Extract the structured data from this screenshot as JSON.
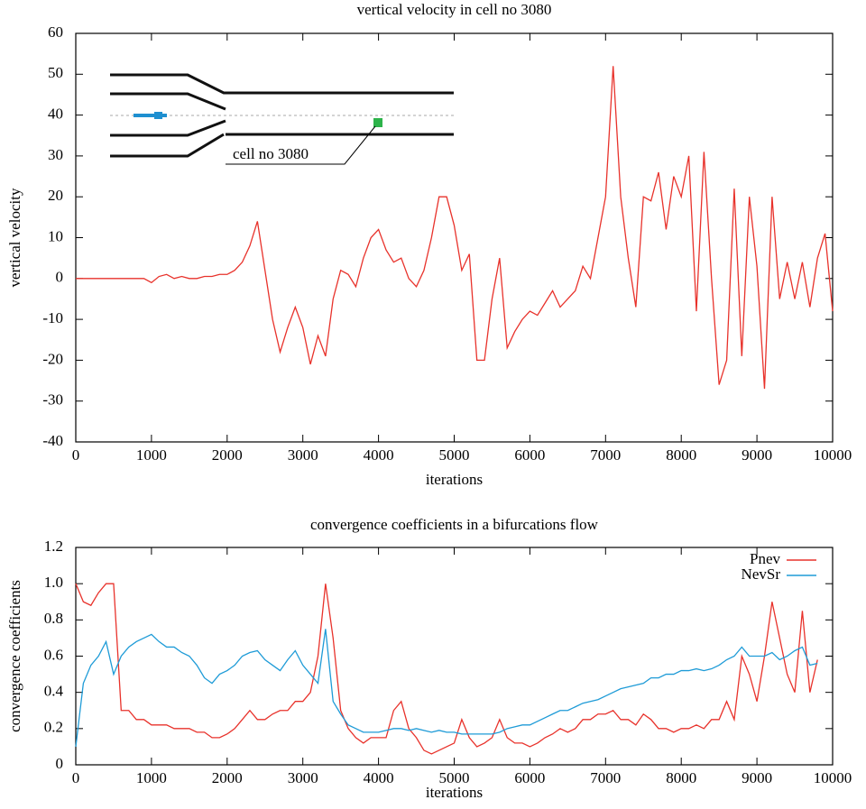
{
  "chart_data": [
    {
      "type": "line",
      "title": "vertical velocity in cell no 3080",
      "x_label": "iterations",
      "y_label": "vertical velocity",
      "annotation": "cell no 3080",
      "x": [
        0,
        100,
        200,
        300,
        400,
        500,
        600,
        700,
        800,
        900,
        1000,
        1100,
        1200,
        1300,
        1400,
        1500,
        1600,
        1700,
        1800,
        1900,
        2000,
        2100,
        2200,
        2300,
        2400,
        2500,
        2600,
        2700,
        2800,
        2900,
        3000,
        3100,
        3200,
        3300,
        3400,
        3500,
        3600,
        3700,
        3800,
        3900,
        4000,
        4100,
        4200,
        4300,
        4400,
        4500,
        4600,
        4700,
        4800,
        4900,
        5000,
        5100,
        5200,
        5300,
        5400,
        5500,
        5600,
        5700,
        5800,
        5900,
        6000,
        6100,
        6200,
        6300,
        6400,
        6500,
        6600,
        6700,
        6800,
        6900,
        7000,
        7100,
        7200,
        7300,
        7400,
        7500,
        7600,
        7700,
        7800,
        7900,
        8000,
        8100,
        8200,
        8300,
        8400,
        8500,
        8600,
        8700,
        8800,
        8900,
        9000,
        9100,
        9200,
        9300,
        9400,
        9500,
        9600,
        9700,
        9800,
        9900,
        10000
      ],
      "series": [
        {
          "name": "vertical velocity",
          "color": "#e8322b",
          "values": [
            0,
            0,
            0,
            0,
            0,
            0,
            0,
            0,
            0,
            0,
            -1,
            0.5,
            1,
            0,
            0.5,
            0,
            0,
            0.5,
            0.5,
            1,
            1,
            2,
            4,
            8,
            14,
            2,
            -10,
            -18,
            -12,
            -7,
            -12,
            -21,
            -14,
            -19,
            -5,
            2,
            1,
            -2,
            5,
            10,
            12,
            7,
            4,
            5,
            0,
            -2,
            2,
            10,
            20,
            20,
            13,
            2,
            6,
            -20,
            -20,
            -5,
            5,
            -17,
            -13,
            -10,
            -8,
            -9,
            -6,
            -3,
            -7,
            -5,
            -3,
            3,
            0,
            10,
            20,
            52,
            20,
            5,
            -7,
            20,
            19,
            26,
            12,
            25,
            20,
            30,
            -8,
            31,
            0,
            -26,
            -20,
            22,
            -19,
            20,
            3,
            -27,
            20,
            -5,
            4,
            -5,
            4,
            -7,
            5,
            11,
            -8
          ]
        }
      ],
      "xlim": [
        0,
        10000
      ],
      "xticks": [
        0,
        1000,
        2000,
        3000,
        4000,
        5000,
        6000,
        7000,
        8000,
        9000,
        10000
      ],
      "ylim": [
        -40,
        60
      ],
      "yticks": [
        -40,
        -30,
        -20,
        -10,
        0,
        10,
        20,
        30,
        40,
        50,
        60
      ],
      "grid": false
    },
    {
      "type": "line",
      "title": "convergence coefficients in a bifurcations flow",
      "x_label": "iterations",
      "y_label": "convergence coefficients",
      "legend": "upper right",
      "x": [
        0,
        100,
        200,
        300,
        400,
        500,
        600,
        700,
        800,
        900,
        1000,
        1100,
        1200,
        1300,
        1400,
        1500,
        1600,
        1700,
        1800,
        1900,
        2000,
        2100,
        2200,
        2300,
        2400,
        2500,
        2600,
        2700,
        2800,
        2900,
        3000,
        3100,
        3200,
        3300,
        3400,
        3500,
        3600,
        3700,
        3800,
        3900,
        4000,
        4100,
        4200,
        4300,
        4400,
        4500,
        4600,
        4700,
        4800,
        4900,
        5000,
        5100,
        5200,
        5300,
        5400,
        5500,
        5600,
        5700,
        5800,
        5900,
        6000,
        6100,
        6200,
        6300,
        6400,
        6500,
        6600,
        6700,
        6800,
        6900,
        7000,
        7100,
        7200,
        7300,
        7400,
        7500,
        7600,
        7700,
        7800,
        7900,
        8000,
        8100,
        8200,
        8300,
        8400,
        8500,
        8600,
        8700,
        8800,
        8900,
        9000,
        9100,
        9200,
        9300,
        9400,
        9500,
        9600,
        9700,
        9800
      ],
      "series": [
        {
          "name": "Pnev",
          "color": "#e8322b",
          "values": [
            1.0,
            0.9,
            0.88,
            0.95,
            1.0,
            1.0,
            0.3,
            0.3,
            0.25,
            0.25,
            0.22,
            0.22,
            0.22,
            0.2,
            0.2,
            0.2,
            0.18,
            0.18,
            0.15,
            0.15,
            0.17,
            0.2,
            0.25,
            0.3,
            0.25,
            0.25,
            0.28,
            0.3,
            0.3,
            0.35,
            0.35,
            0.4,
            0.6,
            1.0,
            0.7,
            0.3,
            0.2,
            0.15,
            0.12,
            0.15,
            0.15,
            0.15,
            0.3,
            0.35,
            0.2,
            0.15,
            0.08,
            0.06,
            0.08,
            0.1,
            0.12,
            0.25,
            0.15,
            0.1,
            0.12,
            0.15,
            0.25,
            0.15,
            0.12,
            0.12,
            0.1,
            0.12,
            0.15,
            0.17,
            0.2,
            0.18,
            0.2,
            0.25,
            0.25,
            0.28,
            0.28,
            0.3,
            0.25,
            0.25,
            0.22,
            0.28,
            0.25,
            0.2,
            0.2,
            0.18,
            0.2,
            0.2,
            0.22,
            0.2,
            0.25,
            0.25,
            0.35,
            0.25,
            0.6,
            0.5,
            0.35,
            0.6,
            0.9,
            0.7,
            0.5,
            0.4,
            0.85,
            0.4,
            0.58
          ]
        },
        {
          "name": "NevSr",
          "color": "#1e9bd7",
          "values": [
            0.1,
            0.45,
            0.55,
            0.6,
            0.68,
            0.5,
            0.6,
            0.65,
            0.68,
            0.7,
            0.72,
            0.68,
            0.65,
            0.65,
            0.62,
            0.6,
            0.55,
            0.48,
            0.45,
            0.5,
            0.52,
            0.55,
            0.6,
            0.62,
            0.63,
            0.58,
            0.55,
            0.52,
            0.58,
            0.63,
            0.55,
            0.5,
            0.45,
            0.75,
            0.35,
            0.28,
            0.22,
            0.2,
            0.18,
            0.18,
            0.18,
            0.19,
            0.2,
            0.2,
            0.19,
            0.2,
            0.19,
            0.18,
            0.19,
            0.18,
            0.18,
            0.17,
            0.17,
            0.17,
            0.17,
            0.17,
            0.18,
            0.2,
            0.21,
            0.22,
            0.22,
            0.24,
            0.26,
            0.28,
            0.3,
            0.3,
            0.32,
            0.34,
            0.35,
            0.36,
            0.38,
            0.4,
            0.42,
            0.43,
            0.44,
            0.45,
            0.48,
            0.48,
            0.5,
            0.5,
            0.52,
            0.52,
            0.53,
            0.52,
            0.53,
            0.55,
            0.58,
            0.6,
            0.65,
            0.6,
            0.6,
            0.6,
            0.62,
            0.58,
            0.6,
            0.63,
            0.65,
            0.55,
            0.56
          ]
        }
      ],
      "xlim": [
        0,
        10000
      ],
      "xticks": [
        0,
        1000,
        2000,
        3000,
        4000,
        5000,
        6000,
        7000,
        8000,
        9000,
        10000
      ],
      "ylim": [
        0,
        1.2
      ],
      "yticks": [
        0,
        0.2,
        0.4,
        0.6,
        0.8,
        {
          "value": 1,
          "label": "1.0"
        },
        1.2
      ],
      "grid": false
    }
  ]
}
